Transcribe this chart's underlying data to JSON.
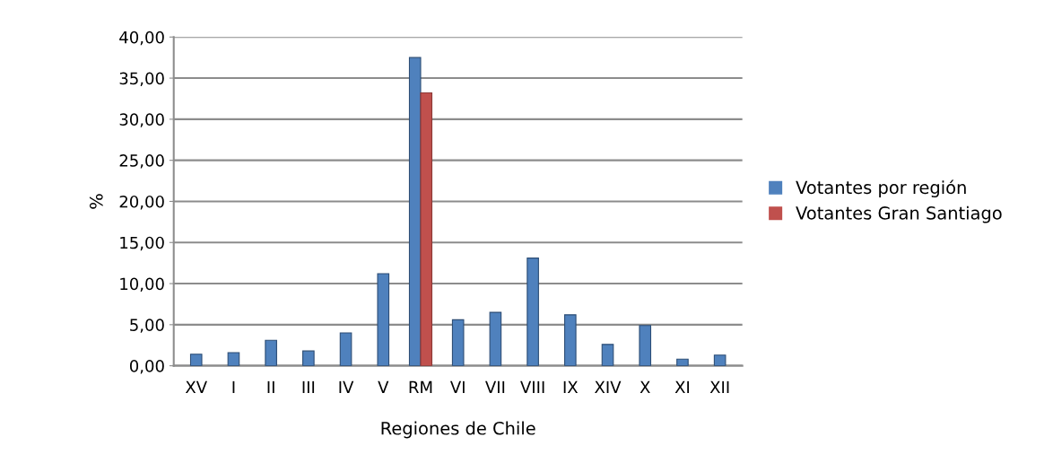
{
  "chart_data": {
    "type": "bar",
    "xlabel": "Regiones de Chile",
    "ylabel": "%",
    "categories": [
      "XV",
      "I",
      "II",
      "III",
      "IV",
      "V",
      "RM",
      "VI",
      "VII",
      "VIII",
      "IX",
      "XIV",
      "X",
      "XI",
      "XII"
    ],
    "series": [
      {
        "name": "Votantes por región",
        "color": "#4f81bd",
        "values": [
          1.4,
          1.6,
          3.1,
          1.8,
          4.0,
          11.2,
          37.5,
          5.6,
          6.5,
          13.1,
          6.2,
          2.6,
          4.9,
          0.8,
          1.3
        ]
      },
      {
        "name": "Votantes Gran Santiago",
        "color": "#c0504d",
        "values": [
          null,
          null,
          null,
          null,
          null,
          null,
          33.2,
          null,
          null,
          null,
          null,
          null,
          null,
          null,
          null
        ]
      }
    ],
    "ylim": [
      0,
      40
    ],
    "yticks": [
      {
        "value": 0,
        "label": "0,00"
      },
      {
        "value": 5,
        "label": "5,00"
      },
      {
        "value": 10,
        "label": "10,00"
      },
      {
        "value": 15,
        "label": "15,00"
      },
      {
        "value": 20,
        "label": "20,00"
      },
      {
        "value": 25,
        "label": "25,00"
      },
      {
        "value": 30,
        "label": "30,00"
      },
      {
        "value": 35,
        "label": "35,00"
      },
      {
        "value": 40,
        "label": "40,00"
      }
    ],
    "grid": "y",
    "legend": "right"
  }
}
